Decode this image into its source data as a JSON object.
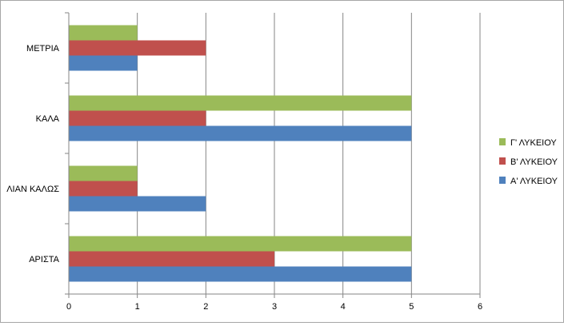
{
  "chart_data": {
    "type": "bar",
    "orientation": "horizontal",
    "categories": [
      "ΑΡΙΣΤΑ",
      "ΛΙΑΝ ΚΑΛΩΣ",
      "ΚΑΛΑ",
      "ΜΕΤΡΙΑ"
    ],
    "series": [
      {
        "name": "Α' ΛΥΚΕΙΟΥ",
        "color": "#4f81bd",
        "values": [
          5,
          2,
          5,
          1
        ]
      },
      {
        "name": "Β' ΛΥΚΕΙΟΥ",
        "color": "#c0504d",
        "values": [
          3,
          1,
          2,
          2
        ]
      },
      {
        "name": "Γ' ΛΥΚΕΙΟΥ",
        "color": "#9bbb59",
        "values": [
          5,
          1,
          5,
          1
        ]
      }
    ],
    "xlim": [
      0,
      6
    ],
    "xticks": [
      "0",
      "1",
      "2",
      "3",
      "4",
      "5",
      "6"
    ],
    "grid": "vertical major gridlines",
    "legend_position": "right"
  }
}
